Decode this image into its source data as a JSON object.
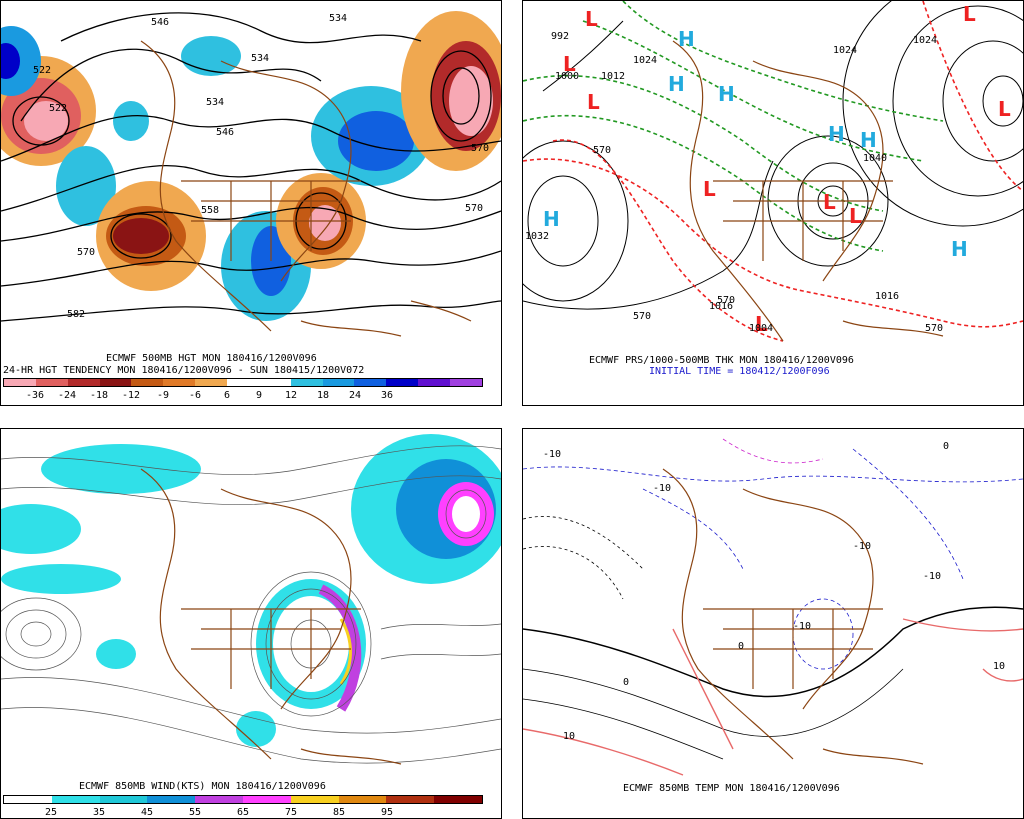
{
  "panels": {
    "p1": {
      "caption1": "ECMWF 500MB HGT MON 180416/1200V096",
      "caption2": "24-HR HGT TENDENCY MON 180416/1200V096 - SUN 180415/1200V072",
      "colorbar": {
        "colors": [
          "#f7a8b4",
          "#e0605f",
          "#b22a2a",
          "#8a1414",
          "#c45a14",
          "#e07a28",
          "#f0a850",
          "#ffffff",
          "#ffffff",
          "#2fc0e0",
          "#1a9ae0",
          "#1060e0",
          "#0000c8",
          "#6010d0",
          "#a040e0"
        ],
        "ticks": [
          "-36",
          "-24",
          "-18",
          "-12",
          "-9",
          "-6",
          "6",
          "9",
          "12",
          "18",
          "24",
          "36"
        ]
      },
      "contour_labels": [
        "546",
        "534",
        "522",
        "534",
        "546",
        "558",
        "570",
        "582",
        "570",
        "534",
        "522",
        "570"
      ]
    },
    "p2": {
      "caption1": "ECMWF PRS/1000-500MB THK MON 180416/1200V096",
      "caption2": "INITIAL TIME = 180412/1200F096",
      "highs": [
        "H",
        "H",
        "H",
        "H",
        "H",
        "H",
        "H"
      ],
      "lows": [
        "L",
        "L",
        "L",
        "L",
        "L",
        "L",
        "L",
        "L",
        "L"
      ],
      "labels": [
        "992",
        "1000",
        "1012",
        "1024",
        "1024",
        "1040",
        "1016",
        "1016",
        "1004",
        "570",
        "570",
        "570",
        "570",
        "1032",
        "1024"
      ]
    },
    "p3": {
      "caption1": "ECMWF 850MB WIND(KTS) MON 180416/1200V096",
      "colorbar": {
        "colors": [
          "#ffffff",
          "#30e0e8",
          "#20c8d8",
          "#1090d8",
          "#c040e0",
          "#ff40ff",
          "#f8d020",
          "#e08810",
          "#b03010",
          "#800000"
        ],
        "ticks": [
          "25",
          "35",
          "45",
          "55",
          "65",
          "75",
          "85",
          "95"
        ]
      }
    },
    "p4": {
      "caption1": "ECMWF 850MB TEMP MON 180416/1200V096",
      "labels": [
        "-10",
        "-10",
        "-10",
        "-10",
        "-10",
        "0",
        "0",
        "0",
        "10",
        "10"
      ]
    }
  },
  "colors": {
    "coast": "#8b4513",
    "contour": "#000000",
    "positive_tendency": "#e07a28",
    "negative_tendency": "#1060e0",
    "thickness": "#ee2222",
    "isobar": "#000000",
    "thickness_green": "#229922",
    "cold": "#1a1acc",
    "warm": "#e86a6a",
    "freezing": "#cc22cc"
  }
}
